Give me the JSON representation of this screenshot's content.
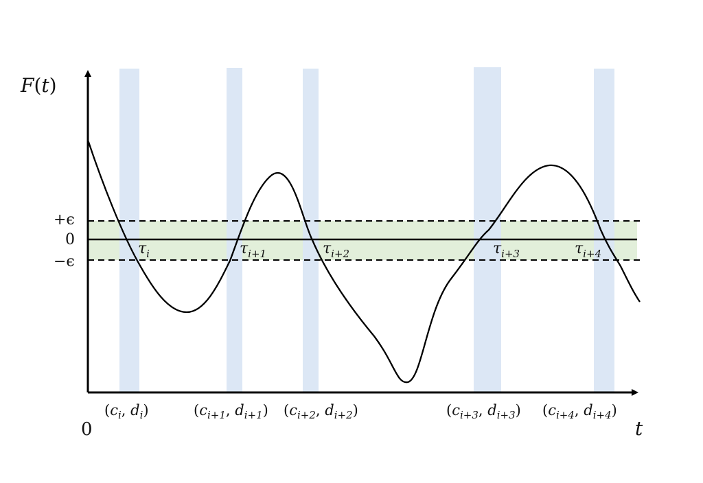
{
  "axes": {
    "y_label_f": "F",
    "y_label_open": "(",
    "y_label_t": "t",
    "y_label_close": ")",
    "x_label": "t",
    "origin_label": "0"
  },
  "levels": {
    "plus_eps": "+ϵ",
    "zero": "0",
    "minus_eps": "−ϵ"
  },
  "crossings": [
    {
      "tau": "τ",
      "sub": "i"
    },
    {
      "tau": "τ",
      "sub": "i+1"
    },
    {
      "tau": "τ",
      "sub": "i+2"
    },
    {
      "tau": "τ",
      "sub": "i+3"
    },
    {
      "tau": "τ",
      "sub": "i+4"
    }
  ],
  "intervals": [
    {
      "c": "c",
      "d": "d",
      "sub": "i"
    },
    {
      "c": "c",
      "d": "d",
      "sub": "i+1"
    },
    {
      "c": "c",
      "d": "d",
      "sub": "i+2"
    },
    {
      "c": "c",
      "d": "d",
      "sub": "i+3"
    },
    {
      "c": "c",
      "d": "d",
      "sub": "i+4"
    }
  ],
  "colors": {
    "band_fill": "#e2efda",
    "interval_fill": "#dae6f4",
    "curve": "#000000",
    "axis": "#000000"
  }
}
